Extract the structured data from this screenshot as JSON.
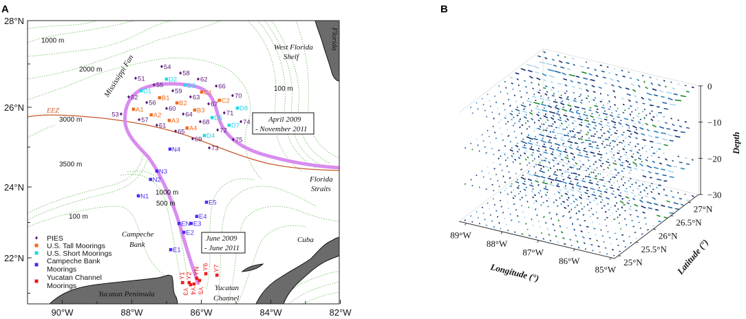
{
  "panel_a": {
    "label": "A",
    "x_ticks": [
      {
        "lon": -90,
        "label": "90°W"
      },
      {
        "lon": -88,
        "label": "88°W"
      },
      {
        "lon": -86,
        "label": "86°W"
      },
      {
        "lon": -84,
        "label": "84°W"
      },
      {
        "lon": -82,
        "label": "82°W"
      }
    ],
    "y_ticks": [
      {
        "lat": 28,
        "label": "28°N"
      },
      {
        "lat": 26,
        "label": "26°N"
      },
      {
        "lat": 24,
        "label": "24°N"
      },
      {
        "lat": 22,
        "label": "22°N"
      }
    ],
    "annotations": {
      "depth_1000_north": "1000 m",
      "depth_2000": "2000 m",
      "depth_3000": "3000 m",
      "depth_3500": "3500 m",
      "depth_100_east": "100 m",
      "depth_1000_south": "1000 m",
      "depth_500": "500 m",
      "depth_100_west": "100 m",
      "mississippi_fan": "Mississippi Fan",
      "eez": "EEZ",
      "west_florida_shelf_1": "West Florida",
      "west_florida_shelf_2": "Shelf",
      "florida": "Florida",
      "florida_straits_1": "Florida",
      "florida_straits_2": "Straits",
      "campeche_bank_1": "Campeche",
      "campeche_bank_2": "Bank",
      "cuba": "Cuba",
      "yucatan_peninsula": "Yucatan Peninsula",
      "yucatan_channel_1": "Yucatan",
      "yucatan_channel_2": "Channel",
      "period_north_1": "April 2009",
      "period_north_2": "- November 2011",
      "period_south_1": "June 2009",
      "period_south_2": "- June 2011"
    },
    "legend": [
      {
        "label": "PIES",
        "color": "#5a1a78",
        "shape": "diamond"
      },
      {
        "label": "U.S. Tall Moorings",
        "color": "#f26b1d",
        "shape": "square"
      },
      {
        "label": "U.S. Short Moorings",
        "color": "#22d8e8",
        "shape": "square"
      },
      {
        "label": "Campeche Bank",
        "label2": "Moorings",
        "color": "#4b2df0",
        "shape": "square"
      },
      {
        "label": "Yucatan Channel",
        "label2": "Moorings",
        "color": "#ee1b1b",
        "shape": "square"
      }
    ],
    "colors": {
      "loop_current": "#d98cf0",
      "eez_line": "#c8582a",
      "land": "#6b6b6b",
      "contour": "#7cc26e"
    },
    "stations": [
      {
        "id": "54",
        "type": 0,
        "lon": -87.14,
        "lat": 26.94
      },
      {
        "id": "58",
        "type": 0,
        "lon": -86.6,
        "lat": 26.79
      },
      {
        "id": "51",
        "type": 0,
        "lon": -87.89,
        "lat": 26.67
      },
      {
        "id": "62",
        "type": 0,
        "lon": -86.09,
        "lat": 26.65
      },
      {
        "id": "55",
        "type": 0,
        "lon": -87.36,
        "lat": 26.52
      },
      {
        "id": "66",
        "type": 0,
        "lon": -85.57,
        "lat": 26.49
      },
      {
        "id": "59",
        "type": 0,
        "lon": -86.82,
        "lat": 26.38
      },
      {
        "id": "70",
        "type": 0,
        "lon": -85.1,
        "lat": 26.27
      },
      {
        "id": "52",
        "type": 0,
        "lon": -88.09,
        "lat": 26.24
      },
      {
        "id": "63",
        "type": 0,
        "lon": -86.31,
        "lat": 26.24
      },
      {
        "id": "56",
        "type": 0,
        "lon": -87.57,
        "lat": 26.11
      },
      {
        "id": "67",
        "type": 0,
        "lon": -85.79,
        "lat": 26.08
      },
      {
        "id": "60",
        "type": 0,
        "lon": -87.0,
        "lat": 25.97
      },
      {
        "id": "53",
        "type": 0,
        "lon": -88.31,
        "lat": 25.83,
        "left": true
      },
      {
        "id": "64",
        "type": 0,
        "lon": -86.52,
        "lat": 25.83
      },
      {
        "id": "71",
        "type": 0,
        "lon": -85.34,
        "lat": 25.86
      },
      {
        "id": "57",
        "type": 0,
        "lon": -87.79,
        "lat": 25.69
      },
      {
        "id": "68",
        "type": 0,
        "lon": -86.03,
        "lat": 25.64
      },
      {
        "id": "74",
        "type": 0,
        "lon": -84.86,
        "lat": 25.64
      },
      {
        "id": "61",
        "type": 0,
        "lon": -87.28,
        "lat": 25.55
      },
      {
        "id": "65",
        "type": 0,
        "lon": -86.74,
        "lat": 25.4
      },
      {
        "id": "72",
        "type": 0,
        "lon": -85.53,
        "lat": 25.43
      },
      {
        "id": "69",
        "type": 0,
        "lon": -86.25,
        "lat": 25.21
      },
      {
        "id": "75",
        "type": 0,
        "lon": -85.08,
        "lat": 25.19
      },
      {
        "id": "73",
        "type": 0,
        "lon": -85.77,
        "lat": 24.98
      },
      {
        "id": "A1",
        "type": 1,
        "lon": -87.95,
        "lat": 25.95
      },
      {
        "id": "A2",
        "type": 1,
        "lon": -87.44,
        "lat": 25.81
      },
      {
        "id": "A3",
        "type": 1,
        "lon": -86.92,
        "lat": 25.67
      },
      {
        "id": "A4",
        "type": 1,
        "lon": -86.41,
        "lat": 25.48
      },
      {
        "id": "B1",
        "type": 1,
        "lon": -87.2,
        "lat": 26.22
      },
      {
        "id": "B2",
        "type": 1,
        "lon": -86.7,
        "lat": 26.1
      },
      {
        "id": "B3",
        "type": 1,
        "lon": -86.19,
        "lat": 25.93
      },
      {
        "id": "C1",
        "type": 1,
        "lon": -85.99,
        "lat": 26.35
      },
      {
        "id": "C2",
        "type": 1,
        "lon": -85.48,
        "lat": 26.16
      },
      {
        "id": "D1",
        "type": 2,
        "lon": -87.73,
        "lat": 26.38
      },
      {
        "id": "D2",
        "type": 2,
        "lon": -87.0,
        "lat": 26.65
      },
      {
        "id": "D3",
        "type": 2,
        "lon": -86.47,
        "lat": 26.51
      },
      {
        "id": "D4",
        "type": 2,
        "lon": -85.91,
        "lat": 25.29
      },
      {
        "id": "D5",
        "type": 2,
        "lon": -85.69,
        "lat": 25.74
      },
      {
        "id": "D7",
        "type": 2,
        "lon": -85.2,
        "lat": 25.55
      },
      {
        "id": "D8",
        "type": 2,
        "lon": -84.96,
        "lat": 25.98
      },
      {
        "id": "N4",
        "type": 3,
        "lon": -86.9,
        "lat": 24.95
      },
      {
        "id": "N3",
        "type": 3,
        "lon": -87.28,
        "lat": 24.4
      },
      {
        "id": "N2",
        "type": 3,
        "lon": -87.46,
        "lat": 24.19
      },
      {
        "id": "N1",
        "type": 3,
        "lon": -87.81,
        "lat": 23.75
      },
      {
        "id": "E5",
        "type": 3,
        "lon": -85.85,
        "lat": 23.57
      },
      {
        "id": "E4",
        "type": 3,
        "lon": -86.13,
        "lat": 23.17
      },
      {
        "id": "EN",
        "type": 3,
        "lon": -86.64,
        "lat": 22.97
      },
      {
        "id": "E3",
        "type": 3,
        "lon": -86.29,
        "lat": 22.97
      },
      {
        "id": "E2",
        "type": 3,
        "lon": -86.5,
        "lat": 22.72
      },
      {
        "id": "E1",
        "type": 3,
        "lon": -86.88,
        "lat": 22.23
      },
      {
        "id": "Y1",
        "type": 4,
        "lon": -86.54,
        "lat": 21.3,
        "vertical": true
      },
      {
        "id": "Y2",
        "type": 4,
        "lon": -86.35,
        "lat": 21.3,
        "vertical": true
      },
      {
        "id": "Y3",
        "type": 4,
        "lon": -86.31,
        "lat": 21.24,
        "vertical": true
      },
      {
        "id": "Y4",
        "type": 4,
        "lon": -86.21,
        "lat": 21.26,
        "vertical": true
      },
      {
        "id": "YN",
        "type": 4,
        "lon": -86.13,
        "lat": 21.42,
        "vertical": true
      },
      {
        "id": "Y5",
        "type": 4,
        "lon": -86.05,
        "lat": 21.36,
        "vertical": true
      },
      {
        "id": "Y6",
        "type": 4,
        "lon": -85.87,
        "lat": 21.55,
        "vertical": true
      },
      {
        "id": "Y7",
        "type": 4,
        "lon": -85.55,
        "lat": 21.51,
        "vertical": true
      }
    ]
  },
  "chart_data": {
    "type": "quiver3d",
    "panel_label": "B",
    "xlabel": "Longitude (°)",
    "ylabel": "Latitude (°)",
    "zlabel": "Depth",
    "x_ticks": [
      {
        "v": -89,
        "label": "89°W"
      },
      {
        "v": -88,
        "label": "88°W"
      },
      {
        "v": -87,
        "label": "87°W"
      },
      {
        "v": -86,
        "label": "86°W"
      },
      {
        "v": -85,
        "label": "85°W"
      }
    ],
    "y_ticks": [
      {
        "v": 25,
        "label": "25°N"
      },
      {
        "v": 25.5,
        "label": "25.5°N"
      },
      {
        "v": 26,
        "label": "26°N"
      },
      {
        "v": 26.5,
        "label": "26.5°N"
      },
      {
        "v": 27,
        "label": "27°N"
      }
    ],
    "z_ticks": [
      {
        "v": 0,
        "label": "0"
      },
      {
        "v": -10,
        "label": "−10"
      },
      {
        "v": -20,
        "label": "−20"
      },
      {
        "v": -30,
        "label": "−30"
      }
    ],
    "xlim": [
      -89.2,
      -84.9
    ],
    "ylim": [
      24.9,
      27.3
    ],
    "zlim": [
      -30,
      0
    ],
    "layers": [
      0,
      -10,
      -20,
      -30
    ],
    "series_colors": [
      "#0b2a6e",
      "#1f5f9e",
      "#2b86c5",
      "#a8d6ec",
      "#1a8a2a"
    ]
  }
}
